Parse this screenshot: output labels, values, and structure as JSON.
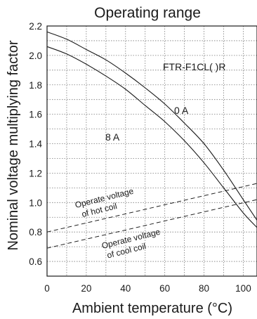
{
  "chart_data": {
    "type": "line",
    "title": "Operating range",
    "xlabel": "Ambient temperature (°C)",
    "ylabel": "Nominal voltage multiplying factor",
    "xlim": [
      0,
      107
    ],
    "ylim": [
      0.5,
      2.2
    ],
    "xticks": [
      "0",
      "20",
      "40",
      "60",
      "80",
      "100"
    ],
    "yticks": [
      "0.6",
      "0.8",
      "1.0",
      "1.2",
      "1.4",
      "1.6",
      "1.8",
      "2.0",
      "2.2"
    ],
    "grid": true,
    "model_label": "FTR-F1CL( )R",
    "series": [
      {
        "name": "0 A",
        "style": "solid",
        "x": [
          0,
          10,
          20,
          30,
          40,
          50,
          60,
          70,
          80,
          90,
          100,
          107
        ],
        "y": [
          2.16,
          2.11,
          2.04,
          1.97,
          1.88,
          1.78,
          1.67,
          1.54,
          1.4,
          1.22,
          1.02,
          0.88
        ]
      },
      {
        "name": "8 A",
        "style": "solid",
        "x": [
          0,
          10,
          20,
          30,
          40,
          50,
          60,
          70,
          80,
          90,
          100,
          107
        ],
        "y": [
          2.06,
          2.01,
          1.94,
          1.86,
          1.77,
          1.66,
          1.55,
          1.42,
          1.27,
          1.1,
          0.93,
          0.83
        ]
      },
      {
        "name": "Operate voltage of hot coil",
        "style": "dashed",
        "x": [
          0,
          107
        ],
        "y": [
          0.8,
          1.13
        ]
      },
      {
        "name": "Operate voltage of cool coil",
        "style": "dashed",
        "x": [
          0,
          107
        ],
        "y": [
          0.69,
          1.02
        ]
      }
    ],
    "annotations": {
      "label_0a": "0 A",
      "label_8a": "8 A",
      "hot_line1": "Operate voltage",
      "hot_line2": "of hot coil",
      "cool_line1": "Operate voltage",
      "cool_line2": "of cool coil"
    }
  }
}
